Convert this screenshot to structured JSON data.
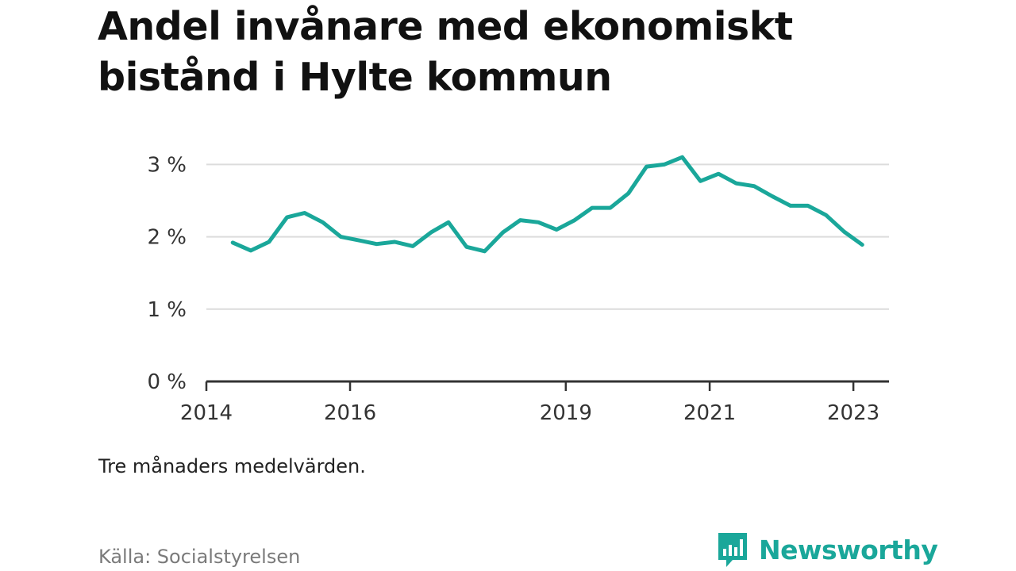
{
  "title": "Andel invånare med ekonomiskt bistånd i Hylte kommun",
  "note": "Tre månaders medelvärden.",
  "source": "Källa: Socialstyrelsen",
  "brand": {
    "name": "Newsworthy",
    "icon": "bar-chart-speech-bubble-icon",
    "color": "#1aa79a"
  },
  "chart_data": {
    "type": "line",
    "title": "Andel invånare med ekonomiskt bistånd i Hylte kommun",
    "xlabel": "",
    "ylabel": "",
    "x_ticks": [
      "2014",
      "2016",
      "2019",
      "2021",
      "2023"
    ],
    "y_ticks": [
      "0 %",
      "1 %",
      "2 %",
      "3 %"
    ],
    "ylim": [
      0,
      3.3
    ],
    "xlim": [
      "2014-01-01",
      "2023-07-01"
    ],
    "grid": "horizontal",
    "legend": "none",
    "series": [
      {
        "name": "",
        "color": "#1aa79a",
        "points": [
          {
            "x": "2014-05-15",
            "y": 1.92
          },
          {
            "x": "2014-08-15",
            "y": 1.81
          },
          {
            "x": "2014-11-15",
            "y": 1.93
          },
          {
            "x": "2015-02-15",
            "y": 2.27
          },
          {
            "x": "2015-05-15",
            "y": 2.33
          },
          {
            "x": "2015-08-15",
            "y": 2.2
          },
          {
            "x": "2015-11-15",
            "y": 2.0
          },
          {
            "x": "2016-02-15",
            "y": 1.95
          },
          {
            "x": "2016-05-15",
            "y": 1.9
          },
          {
            "x": "2016-08-15",
            "y": 1.93
          },
          {
            "x": "2016-11-15",
            "y": 1.87
          },
          {
            "x": "2017-02-15",
            "y": 2.06
          },
          {
            "x": "2017-05-15",
            "y": 2.2
          },
          {
            "x": "2017-08-15",
            "y": 1.86
          },
          {
            "x": "2017-11-15",
            "y": 1.8
          },
          {
            "x": "2018-02-15",
            "y": 2.06
          },
          {
            "x": "2018-05-15",
            "y": 2.23
          },
          {
            "x": "2018-08-15",
            "y": 2.2
          },
          {
            "x": "2018-11-15",
            "y": 2.1
          },
          {
            "x": "2019-02-15",
            "y": 2.23
          },
          {
            "x": "2019-05-15",
            "y": 2.4
          },
          {
            "x": "2019-08-15",
            "y": 2.4
          },
          {
            "x": "2019-11-15",
            "y": 2.6
          },
          {
            "x": "2020-02-15",
            "y": 2.97
          },
          {
            "x": "2020-05-15",
            "y": 3.0
          },
          {
            "x": "2020-08-15",
            "y": 3.1
          },
          {
            "x": "2020-11-15",
            "y": 2.77
          },
          {
            "x": "2021-02-15",
            "y": 2.87
          },
          {
            "x": "2021-05-15",
            "y": 2.74
          },
          {
            "x": "2021-08-15",
            "y": 2.7
          },
          {
            "x": "2021-11-15",
            "y": 2.56
          },
          {
            "x": "2022-02-15",
            "y": 2.43
          },
          {
            "x": "2022-05-15",
            "y": 2.43
          },
          {
            "x": "2022-08-15",
            "y": 2.3
          },
          {
            "x": "2022-11-15",
            "y": 2.07
          },
          {
            "x": "2023-02-15",
            "y": 1.89
          }
        ]
      }
    ]
  }
}
